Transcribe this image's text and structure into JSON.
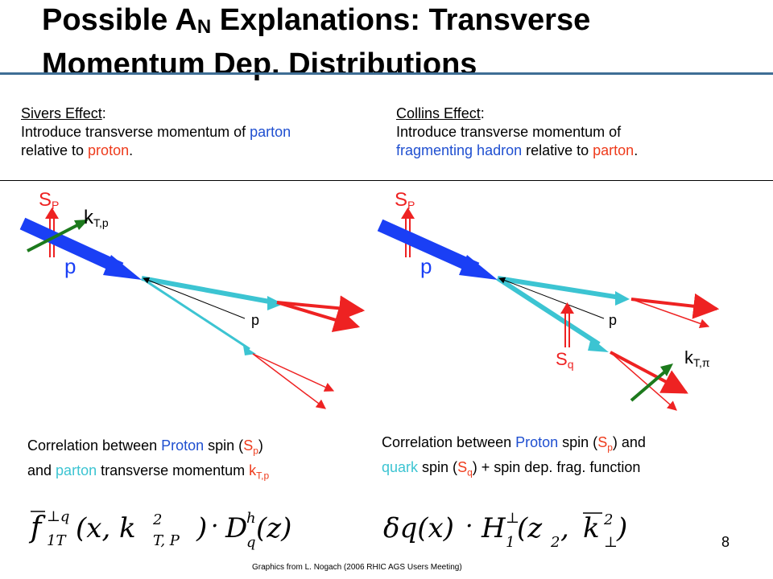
{
  "slide": {
    "title_part1": "Possible A",
    "title_sub": "N",
    "title_part2": " Explanations: Transverse Momentum Dep. Distributions",
    "page_number": "8",
    "credit": "Graphics from L. Nogach (2006 RHIC AGS Users Meeting)"
  },
  "sivers": {
    "heading": "Sivers Effect",
    "heading_colon": ":",
    "line1_a": "Introduce transverse momentum of ",
    "line1_b": "parton",
    "line2_a": "relative to ",
    "line2_b": "proton",
    "line2_c": ".",
    "diagram": {
      "sp": "S",
      "sp_sub": "P",
      "kt": "k",
      "kt_sub": "T,p",
      "p_big": "p",
      "p_small": "p"
    },
    "corr": {
      "t1": "Correlation between ",
      "t2": "Proton",
      "t3": " spin (",
      "t4": "S",
      "t4_sub": "p",
      "t5": ")",
      "t6": "and ",
      "t7": "parton",
      "t8": " transverse momentum ",
      "t9": "k",
      "t9_sub": "T,p"
    }
  },
  "collins": {
    "heading": "Collins Effect",
    "heading_colon": ":",
    "line1": "Introduce transverse momentum of",
    "line2_a": "fragmenting hadron",
    "line2_b": " relative to ",
    "line2_c": "parton",
    "line2_d": ".",
    "diagram": {
      "sp": "S",
      "sp_sub": "P",
      "p_big": "p",
      "p_small": "p",
      "sq": "S",
      "sq_sub": "q",
      "kt": "k",
      "kt_sub": "T,π"
    },
    "corr": {
      "t1": "Correlation between ",
      "t2": "Proton",
      "t3": " spin (",
      "t4": "S",
      "t4_sub": "p",
      "t5": ") and",
      "t6": "quark",
      "t7": " spin (",
      "t8": "S",
      "t8_sub": "q",
      "t9": ") + spin dep. frag. function"
    }
  },
  "formulas": {
    "left": {
      "f": "f",
      "f_sup": "⊥q",
      "f_sub": "1T",
      "args": "(x, k",
      "k_sup": "2",
      "k_sub": "T, P",
      "close": ")",
      "dot": "·",
      "D": "D",
      "D_sup": "h",
      "D_sub": "q",
      "z": "(z)"
    },
    "right": {
      "dq": "δq(x)",
      "dot": "·",
      "H": "H",
      "H_sup": "⊥",
      "H_sub": "1",
      "args": "(z",
      "z_sub": "2",
      "comma": ", ",
      "k": "k",
      "k_sup": "2",
      "k_sub": "⊥",
      "close": ")"
    }
  },
  "colors": {
    "blue": "#1a3ff5",
    "cyan": "#3cc4d2",
    "red": "#ee2222",
    "green": "#1c7a1c",
    "accent_rule": "#3e6e95"
  }
}
